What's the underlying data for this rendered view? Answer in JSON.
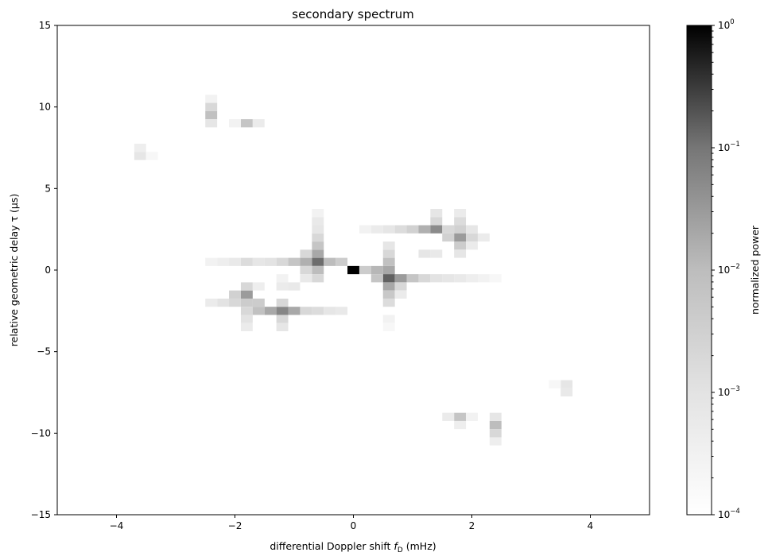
{
  "chart_data": {
    "type": "heatmap",
    "title": "secondary spectrum",
    "xlabel": {
      "prefix": "differential Doppler shift ",
      "symbol": "f",
      "subscript": "D",
      "suffix": " (mHz)"
    },
    "ylabel": "relative geometric delay τ (μs)",
    "xlim": [
      -5,
      5
    ],
    "ylim": [
      -15,
      15
    ],
    "xticks": [
      -4,
      -2,
      0,
      2,
      4
    ],
    "xtick_labels": [
      "−4",
      "−2",
      "0",
      "2",
      "4"
    ],
    "yticks": [
      -15,
      -10,
      -5,
      0,
      5,
      10,
      15
    ],
    "ytick_labels": [
      "−15",
      "−10",
      "−5",
      "0",
      "5",
      "10",
      "15"
    ],
    "cell_size": {
      "doppler_mhz": 0.2,
      "delay_us": 0.5
    },
    "colormap": {
      "low_color": "#ffffff",
      "high_color": "#000000"
    },
    "colorbar": {
      "label": "normalized power",
      "scale": "log",
      "range": [
        0.0001,
        1
      ],
      "ticks": [
        {
          "value": 1,
          "base": "10",
          "exponent": "0"
        },
        {
          "value": 0.1,
          "base": "10",
          "exponent": "−1"
        },
        {
          "value": 0.01,
          "base": "10",
          "exponent": "−2"
        },
        {
          "value": 0.001,
          "base": "10",
          "exponent": "−3"
        },
        {
          "value": 0.0001,
          "base": "10",
          "exponent": "−4"
        }
      ]
    },
    "grid": false,
    "cells": [
      {
        "x": 0.0,
        "y": 0.0,
        "z": 1.0
      },
      {
        "x": -0.6,
        "y": 0.5,
        "z": 0.12
      },
      {
        "x": -0.6,
        "y": 1.0,
        "z": 0.02
      },
      {
        "x": -0.6,
        "y": 1.5,
        "z": 0.006
      },
      {
        "x": -0.6,
        "y": 2.0,
        "z": 0.002
      },
      {
        "x": -0.6,
        "y": 2.5,
        "z": 0.0008
      },
      {
        "x": -0.6,
        "y": 3.0,
        "z": 0.0006
      },
      {
        "x": -0.6,
        "y": 3.5,
        "z": 0.0003
      },
      {
        "x": -0.6,
        "y": 0.0,
        "z": 0.01
      },
      {
        "x": -0.6,
        "y": -0.5,
        "z": 0.002
      },
      {
        "x": -0.8,
        "y": 0.5,
        "z": 0.015
      },
      {
        "x": -0.8,
        "y": 1.0,
        "z": 0.002
      },
      {
        "x": -0.8,
        "y": 0.0,
        "z": 0.002
      },
      {
        "x": -1.0,
        "y": 0.5,
        "z": 0.006
      },
      {
        "x": -1.2,
        "y": 0.5,
        "z": 0.002
      },
      {
        "x": -1.4,
        "y": 0.5,
        "z": 0.001
      },
      {
        "x": -1.6,
        "y": 0.5,
        "z": 0.0008
      },
      {
        "x": -1.8,
        "y": 0.5,
        "z": 0.0015
      },
      {
        "x": -2.0,
        "y": 0.5,
        "z": 0.0006
      },
      {
        "x": -2.2,
        "y": 0.5,
        "z": 0.0004
      },
      {
        "x": -2.4,
        "y": 0.5,
        "z": 0.0003
      },
      {
        "x": -0.4,
        "y": 0.5,
        "z": 0.01
      },
      {
        "x": -0.2,
        "y": 0.5,
        "z": 0.004
      },
      {
        "x": -0.8,
        "y": -0.5,
        "z": 0.0006
      },
      {
        "x": -1.2,
        "y": -0.5,
        "z": 0.0003
      },
      {
        "x": 0.2,
        "y": 0.0,
        "z": 0.004
      },
      {
        "x": 0.4,
        "y": 0.0,
        "z": 0.012
      },
      {
        "x": 0.6,
        "y": 0.0,
        "z": 0.02
      },
      {
        "x": 0.6,
        "y": 0.5,
        "z": 0.008
      },
      {
        "x": 0.6,
        "y": 1.0,
        "z": 0.002
      },
      {
        "x": 0.6,
        "y": 1.5,
        "z": 0.0008
      },
      {
        "x": 0.6,
        "y": -0.5,
        "z": 0.15
      },
      {
        "x": 0.6,
        "y": -1.0,
        "z": 0.02
      },
      {
        "x": 0.6,
        "y": -1.5,
        "z": 0.005
      },
      {
        "x": 0.6,
        "y": -2.0,
        "z": 0.0015
      },
      {
        "x": 0.6,
        "y": -3.0,
        "z": 0.0003
      },
      {
        "x": 0.6,
        "y": -3.5,
        "z": 0.0002
      },
      {
        "x": 0.4,
        "y": -0.5,
        "z": 0.006
      },
      {
        "x": 0.8,
        "y": -0.5,
        "z": 0.03
      },
      {
        "x": 0.8,
        "y": -1.0,
        "z": 0.002
      },
      {
        "x": 1.0,
        "y": -0.5,
        "z": 0.006
      },
      {
        "x": 1.2,
        "y": -0.5,
        "z": 0.002
      },
      {
        "x": 1.4,
        "y": -0.5,
        "z": 0.001
      },
      {
        "x": 1.6,
        "y": -0.5,
        "z": 0.0008
      },
      {
        "x": 1.8,
        "y": -0.5,
        "z": 0.0006
      },
      {
        "x": 2.0,
        "y": -0.5,
        "z": 0.0004
      },
      {
        "x": 2.2,
        "y": -0.5,
        "z": 0.0003
      },
      {
        "x": 2.4,
        "y": -0.5,
        "z": 0.0002
      },
      {
        "x": 0.8,
        "y": -1.5,
        "z": 0.0005
      },
      {
        "x": 0.2,
        "y": 2.5,
        "z": 0.0003
      },
      {
        "x": 0.4,
        "y": 2.5,
        "z": 0.0005
      },
      {
        "x": 0.6,
        "y": 2.5,
        "z": 0.0008
      },
      {
        "x": 0.8,
        "y": 2.5,
        "z": 0.0015
      },
      {
        "x": 1.0,
        "y": 2.5,
        "z": 0.003
      },
      {
        "x": 1.2,
        "y": 2.5,
        "z": 0.015
      },
      {
        "x": 1.4,
        "y": 2.5,
        "z": 0.05
      },
      {
        "x": 1.4,
        "y": 3.0,
        "z": 0.002
      },
      {
        "x": 1.4,
        "y": 3.5,
        "z": 0.0008
      },
      {
        "x": 1.6,
        "y": 2.5,
        "z": 0.002
      },
      {
        "x": 1.8,
        "y": 2.5,
        "z": 0.003
      },
      {
        "x": 1.8,
        "y": 3.0,
        "z": 0.0015
      },
      {
        "x": 1.8,
        "y": 3.5,
        "z": 0.0005
      },
      {
        "x": 1.8,
        "y": 2.0,
        "z": 0.03
      },
      {
        "x": 1.8,
        "y": 1.5,
        "z": 0.004
      },
      {
        "x": 1.8,
        "y": 1.0,
        "z": 0.0008
      },
      {
        "x": 1.6,
        "y": 2.0,
        "z": 0.003
      },
      {
        "x": 2.0,
        "y": 2.0,
        "z": 0.002
      },
      {
        "x": 2.0,
        "y": 2.5,
        "z": 0.0008
      },
      {
        "x": 2.2,
        "y": 2.0,
        "z": 0.0005
      },
      {
        "x": 2.0,
        "y": 1.5,
        "z": 0.0005
      },
      {
        "x": 1.2,
        "y": 1.0,
        "z": 0.0008
      },
      {
        "x": 1.4,
        "y": 1.0,
        "z": 0.0006
      },
      {
        "x": -1.8,
        "y": -1.5,
        "z": 0.03
      },
      {
        "x": -1.8,
        "y": -1.0,
        "z": 0.002
      },
      {
        "x": -1.8,
        "y": -2.0,
        "z": 0.004
      },
      {
        "x": -1.8,
        "y": -2.5,
        "z": 0.002
      },
      {
        "x": -1.8,
        "y": -3.0,
        "z": 0.001
      },
      {
        "x": -1.8,
        "y": -3.5,
        "z": 0.0005
      },
      {
        "x": -2.0,
        "y": -1.5,
        "z": 0.003
      },
      {
        "x": -2.0,
        "y": -2.0,
        "z": 0.002
      },
      {
        "x": -2.2,
        "y": -2.0,
        "z": 0.001
      },
      {
        "x": -2.4,
        "y": -2.0,
        "z": 0.0005
      },
      {
        "x": -1.6,
        "y": -2.0,
        "z": 0.006
      },
      {
        "x": -1.6,
        "y": -2.5,
        "z": 0.008
      },
      {
        "x": -1.4,
        "y": -2.5,
        "z": 0.02
      },
      {
        "x": -1.2,
        "y": -2.5,
        "z": 0.06
      },
      {
        "x": -1.2,
        "y": -3.0,
        "z": 0.002
      },
      {
        "x": -1.2,
        "y": -3.5,
        "z": 0.0008
      },
      {
        "x": -1.2,
        "y": -2.0,
        "z": 0.002
      },
      {
        "x": -1.0,
        "y": -2.5,
        "z": 0.02
      },
      {
        "x": -0.8,
        "y": -2.5,
        "z": 0.002
      },
      {
        "x": -0.6,
        "y": -2.5,
        "z": 0.0015
      },
      {
        "x": -0.4,
        "y": -2.5,
        "z": 0.0008
      },
      {
        "x": -0.2,
        "y": -2.5,
        "z": 0.0006
      },
      {
        "x": -1.6,
        "y": -2.0,
        "z": 0.004
      },
      {
        "x": -1.2,
        "y": -1.0,
        "z": 0.0005
      },
      {
        "x": -1.6,
        "y": -1.0,
        "z": 0.0004
      },
      {
        "x": -1.0,
        "y": -1.0,
        "z": 0.0006
      },
      {
        "x": -2.4,
        "y": 9.5,
        "z": 0.008
      },
      {
        "x": -2.4,
        "y": 10.0,
        "z": 0.002
      },
      {
        "x": -2.4,
        "y": 10.5,
        "z": 0.0003
      },
      {
        "x": -2.4,
        "y": 9.0,
        "z": 0.0008
      },
      {
        "x": -1.8,
        "y": 9.0,
        "z": 0.006
      },
      {
        "x": -1.6,
        "y": 9.0,
        "z": 0.0005
      },
      {
        "x": -2.0,
        "y": 9.0,
        "z": 0.0003
      },
      {
        "x": -3.6,
        "y": 7.0,
        "z": 0.0008
      },
      {
        "x": -3.6,
        "y": 7.5,
        "z": 0.0004
      },
      {
        "x": -3.4,
        "y": 7.0,
        "z": 0.0002
      },
      {
        "x": 1.8,
        "y": -9.0,
        "z": 0.006
      },
      {
        "x": 1.6,
        "y": -9.0,
        "z": 0.0005
      },
      {
        "x": 2.0,
        "y": -9.0,
        "z": 0.0003
      },
      {
        "x": 1.8,
        "y": -9.5,
        "z": 0.0004
      },
      {
        "x": 2.4,
        "y": -9.5,
        "z": 0.01
      },
      {
        "x": 2.4,
        "y": -10.0,
        "z": 0.002
      },
      {
        "x": 2.4,
        "y": -10.5,
        "z": 0.0004
      },
      {
        "x": 2.4,
        "y": -9.0,
        "z": 0.0008
      },
      {
        "x": 3.6,
        "y": -7.0,
        "z": 0.0008
      },
      {
        "x": 3.6,
        "y": -7.5,
        "z": 0.0006
      },
      {
        "x": 3.4,
        "y": -7.0,
        "z": 0.0002
      }
    ]
  }
}
